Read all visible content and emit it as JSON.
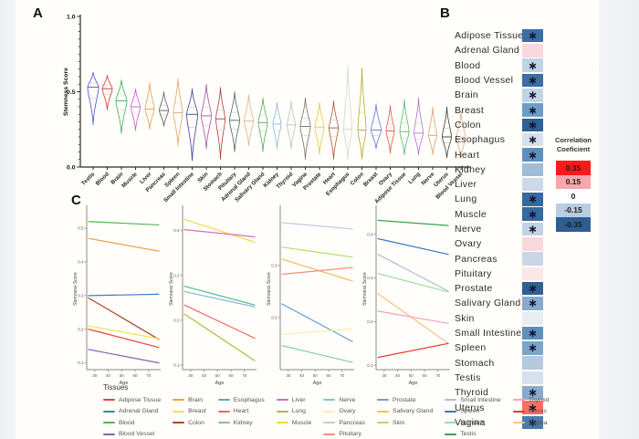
{
  "panels": {
    "a": "A",
    "b": "B",
    "c": "C"
  },
  "chart_data": [
    {
      "id": "panel_a",
      "type": "violin",
      "ylabel": "Stemness Score",
      "ylim": [
        0.0,
        1.0
      ],
      "yticks_major": [
        {
          "v": 0.0,
          "label": "0.0"
        },
        {
          "v": 0.5,
          "label": "0.5"
        },
        {
          "v": 1.0,
          "label": "1.0"
        }
      ],
      "violins": [
        {
          "tissue": "Testis",
          "color": "#4a52cf",
          "median": 0.53,
          "lo": 0.28,
          "hi": 0.63,
          "hw": 6
        },
        {
          "tissue": "Blood",
          "color": "#d63333",
          "median": 0.52,
          "lo": 0.38,
          "hi": 0.61,
          "hw": 5.5
        },
        {
          "tissue": "Brain",
          "color": "#3fae53",
          "median": 0.44,
          "lo": 0.22,
          "hi": 0.58,
          "hw": 6
        },
        {
          "tissue": "Muscle",
          "color": "#c75bd0",
          "median": 0.4,
          "lo": 0.24,
          "hi": 0.52,
          "hw": 5
        },
        {
          "tissue": "Liver",
          "color": "#e89a4a",
          "median": 0.385,
          "lo": 0.25,
          "hi": 0.56,
          "hw": 5
        },
        {
          "tissue": "Pancreas",
          "color": "#5a5a5a",
          "median": 0.375,
          "lo": 0.27,
          "hi": 0.5,
          "hw": 5
        },
        {
          "tissue": "Spleen",
          "color": "#d9a766",
          "median": 0.36,
          "lo": 0.14,
          "hi": 0.59,
          "hw": 5
        },
        {
          "tissue": "Small Intestine",
          "color": "#3a3f9e",
          "median": 0.35,
          "lo": 0.04,
          "hi": 0.52,
          "hw": 6
        },
        {
          "tissue": "Skin",
          "color": "#9e4f9e",
          "median": 0.34,
          "lo": 0.12,
          "hi": 0.55,
          "hw": 5.5
        },
        {
          "tissue": "Stomach",
          "color": "#b03a3a",
          "median": 0.32,
          "lo": 0.05,
          "hi": 0.53,
          "hw": 5
        },
        {
          "tissue": "Pituitary",
          "color": "#44666b",
          "median": 0.31,
          "lo": 0.1,
          "hi": 0.5,
          "hw": 5.5
        },
        {
          "tissue": "Adrenal Gland",
          "color": "#d9b38c",
          "median": 0.305,
          "lo": 0.14,
          "hi": 0.48,
          "hw": 5
        },
        {
          "tissue": "Salivary Gland",
          "color": "#4fae5e",
          "median": 0.295,
          "lo": 0.1,
          "hi": 0.46,
          "hw": 5
        },
        {
          "tissue": "Kidney",
          "color": "#86b8d8",
          "median": 0.285,
          "lo": 0.12,
          "hi": 0.43,
          "hw": 4.5
        },
        {
          "tissue": "Thyroid",
          "color": "#bdbdbd",
          "median": 0.28,
          "lo": 0.12,
          "hi": 0.44,
          "hw": 4.5
        },
        {
          "tissue": "Vagina",
          "color": "#6e6e6e",
          "median": 0.27,
          "lo": 0.05,
          "hi": 0.46,
          "hw": 5.5
        },
        {
          "tissue": "Prostate",
          "color": "#ddce3e",
          "median": 0.265,
          "lo": 0.08,
          "hi": 0.43,
          "hw": 5
        },
        {
          "tissue": "Heart",
          "color": "#a8553a",
          "median": 0.26,
          "lo": 0.05,
          "hi": 0.44,
          "hw": 5
        },
        {
          "tissue": "Esophagus",
          "color": "#d4d4d4",
          "median": 0.25,
          "lo": 0.05,
          "hi": 0.68,
          "hw": 4.5
        },
        {
          "tissue": "Colon",
          "color": "#b8a52e",
          "median": 0.245,
          "lo": 0.05,
          "hi": 0.66,
          "hw": 4.5
        },
        {
          "tissue": "Breast",
          "color": "#5b79d8",
          "median": 0.245,
          "lo": 0.12,
          "hi": 0.42,
          "hw": 5.5
        },
        {
          "tissue": "Ovary",
          "color": "#e05545",
          "median": 0.24,
          "lo": 0.09,
          "hi": 0.41,
          "hw": 4.5
        },
        {
          "tissue": "Adipose Tissue",
          "color": "#54b86a",
          "median": 0.235,
          "lo": 0.08,
          "hi": 0.45,
          "hw": 5
        },
        {
          "tissue": "Lung",
          "color": "#b06fd8",
          "median": 0.225,
          "lo": 0.08,
          "hi": 0.46,
          "hw": 5
        },
        {
          "tissue": "Nerve",
          "color": "#e0a070",
          "median": 0.21,
          "lo": 0.08,
          "hi": 0.4,
          "hw": 4.5
        },
        {
          "tissue": "Uterus",
          "color": "#3a3a3a",
          "median": 0.2,
          "lo": 0.06,
          "hi": 0.4,
          "hw": 5
        },
        {
          "tissue": "Blood Vessel",
          "color": "#d8b088",
          "median": 0.19,
          "lo": 0.06,
          "hi": 0.37,
          "hw": 5
        }
      ]
    },
    {
      "id": "panel_b",
      "type": "heatmap",
      "legend": {
        "title_line1": "Correlation",
        "title_line2": "Coeficient",
        "scale": [
          {
            "label": "0.35",
            "color": "#fc1b1a"
          },
          {
            "label": "0.15",
            "color": "#f9a7ab"
          },
          {
            "label": "0",
            "color": "#ffffff"
          },
          {
            "label": "-0.15",
            "color": "#b9cde2"
          },
          {
            "label": "-0.35",
            "color": "#2d5e92"
          }
        ]
      },
      "rows": [
        {
          "tissue": "Adipose Tissue",
          "corr": -0.3,
          "color": "#3c6ea5",
          "significant": true
        },
        {
          "tissue": "Adrenal Gland",
          "corr": 0.08,
          "color": "#f8d9dd",
          "significant": false
        },
        {
          "tissue": "Blood",
          "corr": -0.14,
          "color": "#c2d3e5",
          "significant": true
        },
        {
          "tissue": "Blood Vessel",
          "corr": -0.3,
          "color": "#3c6ea5",
          "significant": true
        },
        {
          "tissue": "Brain",
          "corr": -0.14,
          "color": "#c2d3e5",
          "significant": true
        },
        {
          "tissue": "Breast",
          "corr": -0.22,
          "color": "#6e9ec7",
          "significant": true
        },
        {
          "tissue": "Colon",
          "corr": -0.32,
          "color": "#2f5f93",
          "significant": true
        },
        {
          "tissue": "Esophagus",
          "corr": -0.08,
          "color": "#d6e1ed",
          "significant": true
        },
        {
          "tissue": "Heart",
          "corr": -0.26,
          "color": "#5d90bd",
          "significant": true
        },
        {
          "tissue": "Kidney",
          "corr": -0.18,
          "color": "#9fbcd8",
          "significant": false
        },
        {
          "tissue": "Liver",
          "corr": -0.1,
          "color": "#cdd9e8",
          "significant": false
        },
        {
          "tissue": "Lung",
          "corr": -0.31,
          "color": "#35699f",
          "significant": true
        },
        {
          "tissue": "Muscle",
          "corr": -0.31,
          "color": "#35699f",
          "significant": true
        },
        {
          "tissue": "Nerve",
          "corr": -0.13,
          "color": "#c2d3e5",
          "significant": true
        },
        {
          "tissue": "Ovary",
          "corr": 0.07,
          "color": "#f8d9dd",
          "significant": false
        },
        {
          "tissue": "Pancreas",
          "corr": -0.12,
          "color": "#c9d6e6",
          "significant": false
        },
        {
          "tissue": "Pituitary",
          "corr": 0.05,
          "color": "#fbe7e8",
          "significant": false
        },
        {
          "tissue": "Prostate",
          "corr": -0.33,
          "color": "#2f5f93",
          "significant": true
        },
        {
          "tissue": "Salivary Gland",
          "corr": -0.2,
          "color": "#87abcd",
          "significant": true
        },
        {
          "tissue": "Skin",
          "corr": -0.03,
          "color": "#e9edf2",
          "significant": false
        },
        {
          "tissue": "Small Intestine",
          "corr": -0.25,
          "color": "#5d90bd",
          "significant": true
        },
        {
          "tissue": "Spleen",
          "corr": -0.22,
          "color": "#7ba4ca",
          "significant": true
        },
        {
          "tissue": "Stomach",
          "corr": -0.15,
          "color": "#b7c9dd",
          "significant": false
        },
        {
          "tissue": "Testis",
          "corr": -0.09,
          "color": "#d6e1ed",
          "significant": false
        },
        {
          "tissue": "Thyroid",
          "corr": -0.2,
          "color": "#87abcd",
          "significant": true
        },
        {
          "tissue": "Uterus",
          "corr": 0.3,
          "color": "#f96f63",
          "significant": true
        },
        {
          "tissue": "Vagina",
          "corr": -0.28,
          "color": "#4a7cad",
          "significant": true
        }
      ]
    },
    {
      "id": "panel_c_1",
      "type": "line",
      "xlabel": "Age",
      "ylabel": "Stemness Score",
      "xlim": [
        24,
        79
      ],
      "xticks": [
        30,
        40,
        50,
        60,
        70
      ],
      "ylim": [
        0.08,
        0.56
      ],
      "yticks": [
        0.1,
        0.2,
        0.3,
        0.4,
        0.5
      ],
      "series": [
        {
          "name": "Blood",
          "color": "#53b257",
          "start": 0.52,
          "end": 0.51
        },
        {
          "name": "Brain",
          "color": "#f59b42",
          "start": 0.47,
          "end": 0.432
        },
        {
          "name": "Adrenal Gland",
          "color": "#3f7fc1",
          "start": 0.3,
          "end": 0.304
        },
        {
          "name": "Colon",
          "color": "#b0432e",
          "start": 0.293,
          "end": 0.17
        },
        {
          "name": "Breast",
          "color": "#f2e34c",
          "start": 0.21,
          "end": 0.172
        },
        {
          "name": "Adipose Tissue",
          "color": "#e8413c",
          "start": 0.2,
          "end": 0.146
        },
        {
          "name": "Blood Vessel",
          "color": "#8c5fa8",
          "start": 0.14,
          "end": 0.1
        }
      ]
    },
    {
      "id": "panel_c_2",
      "type": "line",
      "xlabel": "Age",
      "ylabel": "Stemness Score",
      "xlim": [
        24,
        79
      ],
      "xticks": [
        30,
        40,
        50,
        60,
        70
      ],
      "ylim": [
        0.09,
        0.45
      ],
      "yticks": [
        0.1,
        0.2,
        0.3,
        0.4
      ],
      "series": [
        {
          "name": "Muscle",
          "color": "#f5d93d",
          "start": 0.425,
          "end": 0.374
        },
        {
          "name": "Liver",
          "color": "#d06fb4",
          "start": 0.402,
          "end": 0.386
        },
        {
          "name": "Esophagus",
          "color": "#52b89a",
          "start": 0.276,
          "end": 0.234
        },
        {
          "name": "Kidney",
          "color": "#85b4d8",
          "start": 0.264,
          "end": 0.23
        },
        {
          "name": "Heart",
          "color": "#f0695f",
          "start": 0.234,
          "end": 0.16
        },
        {
          "name": "Lung",
          "color": "#aabf3a",
          "start": 0.214,
          "end": 0.11
        }
      ]
    },
    {
      "id": "panel_c_3",
      "type": "line",
      "xlabel": "Age",
      "ylabel": "Stemness Score",
      "xlim": [
        24,
        79
      ],
      "xticks": [
        30,
        40,
        50,
        60,
        70
      ],
      "ylim": [
        0.1,
        0.41
      ],
      "yticks": [
        0.2,
        0.3
      ],
      "series": [
        {
          "name": "Pancreas",
          "color": "#c3c9e2",
          "start": 0.382,
          "end": 0.37
        },
        {
          "name": "Skin",
          "color": "#b5d96d",
          "start": 0.335,
          "end": 0.316
        },
        {
          "name": "Salivary Gland",
          "color": "#f5bd60",
          "start": 0.312,
          "end": 0.27
        },
        {
          "name": "Pituitary",
          "color": "#f09078",
          "start": 0.283,
          "end": 0.296
        },
        {
          "name": "Prostate",
          "color": "#6f9fd8",
          "start": 0.226,
          "end": 0.154
        },
        {
          "name": "Ovary",
          "color": "#f7eead",
          "start": 0.168,
          "end": 0.178
        },
        {
          "name": "Nerve",
          "color": "#7ecbbb",
          "start": 0.146,
          "end": 0.114
        }
      ]
    },
    {
      "id": "panel_c_4",
      "type": "line",
      "xlabel": "Age",
      "ylabel": "Stemness Score",
      "xlim": [
        24,
        79
      ],
      "xticks": [
        30,
        40,
        50,
        60,
        70
      ],
      "ylim": [
        0.09,
        0.46
      ],
      "yticks": [
        0.1,
        0.2,
        0.3,
        0.4
      ],
      "series": [
        {
          "name": "Testis",
          "color": "#3fa04a",
          "start": 0.432,
          "end": 0.42
        },
        {
          "name": "Spleen",
          "color": "#3a78c2",
          "start": 0.39,
          "end": 0.354
        },
        {
          "name": "Small Intestine",
          "color": "#aebcd6",
          "start": 0.354,
          "end": 0.27
        },
        {
          "name": "Stomach",
          "color": "#a3d9a8",
          "start": 0.31,
          "end": 0.268
        },
        {
          "name": "Vagina",
          "color": "#f7c08a",
          "start": 0.264,
          "end": 0.15
        },
        {
          "name": "Thyroid",
          "color": "#f2a3b5",
          "start": 0.224,
          "end": 0.196
        },
        {
          "name": "Uterus",
          "color": "#e33a2e",
          "start": 0.118,
          "end": 0.15
        }
      ]
    }
  ],
  "tissues_legend": {
    "title": "Tissues",
    "columns": [
      [
        "Adipose Tissue",
        "Adrenal Gland",
        "Blood",
        "Blood Vessel"
      ],
      [
        "Brain",
        "Breast",
        "Colon"
      ],
      [
        "Esophagus",
        "Heart",
        "Kidney"
      ],
      [
        "Liver",
        "Lung",
        "Muscle"
      ],
      [
        "Nerve",
        "Ovary",
        "Pancreas",
        "Pituitary"
      ],
      [
        "Prostate",
        "Salivary Gland",
        "Skin"
      ],
      [
        "Small Intestine",
        "Spleen",
        "Stomach",
        "Testis"
      ],
      [
        "Thyroid",
        "Uterus",
        "Vagina"
      ]
    ],
    "colors": {
      "Adipose Tissue": "#e8413c",
      "Adrenal Gland": "#3f7fc1",
      "Blood": "#53b257",
      "Blood Vessel": "#8c5fa8",
      "Brain": "#f59b42",
      "Breast": "#f2e34c",
      "Colon": "#b0432e",
      "Esophagus": "#52b89a",
      "Heart": "#f0695f",
      "Kidney": "#85b4d8",
      "Liver": "#d06fb4",
      "Lung": "#aabf3a",
      "Muscle": "#f5d93d",
      "Nerve": "#7ecbbb",
      "Ovary": "#f7eead",
      "Pancreas": "#c3c9e2",
      "Pituitary": "#f09078",
      "Prostate": "#6f9fd8",
      "Salivary Gland": "#f5bd60",
      "Skin": "#b5d96d",
      "Small Intestine": "#aebcd6",
      "Spleen": "#3a78c2",
      "Stomach": "#a3d9a8",
      "Testis": "#3fa04a",
      "Thyroid": "#f2a3b5",
      "Uterus": "#e33a2e",
      "Vagina": "#f7c08a"
    }
  }
}
